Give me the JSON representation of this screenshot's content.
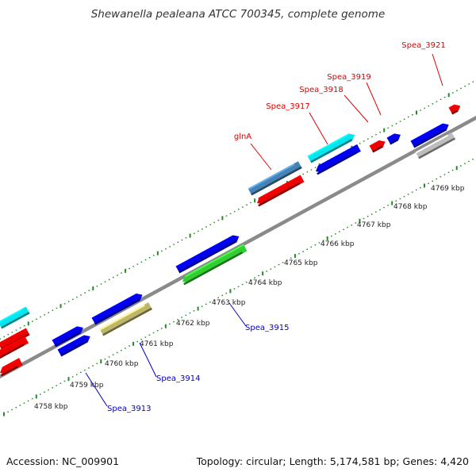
{
  "title": "Shewanella pealeana ATCC 700345, complete genome",
  "footer": {
    "accession": "Accession: NC_009901",
    "summary": "Topology: circular; Length: 5,174,581 bp; Genes: 4,420"
  },
  "colors": {
    "backbone": "#8a8a8a",
    "tick": "#228b22",
    "label_forward": "#dd0000",
    "label_reverse": "#0000cc"
  },
  "kbp_labels": [
    "4758 kbp",
    "4759 kbp",
    "4760 kbp",
    "4761 kbp",
    "4762 kbp",
    "4763 kbp",
    "4764 kbp",
    "4765 kbp",
    "4766 kbp",
    "4767 kbp",
    "4768 kbp",
    "4769 kbp"
  ],
  "gene_labels": [
    {
      "text": "Spea_3921",
      "strand": "forward"
    },
    {
      "text": "Spea_3919",
      "strand": "forward"
    },
    {
      "text": "Spea_3918",
      "strand": "forward"
    },
    {
      "text": "Spea_3917",
      "strand": "forward"
    },
    {
      "text": "glnA",
      "strand": "forward"
    },
    {
      "text": "Spea_3915",
      "strand": "reverse"
    },
    {
      "text": "Spea_3914",
      "strand": "reverse"
    },
    {
      "text": "Spea_3913",
      "strand": "reverse"
    }
  ],
  "features": [
    {
      "color": "#00e5ee",
      "strand": "forward",
      "shape": "bar"
    },
    {
      "color": "#ee0000",
      "strand": "forward",
      "shape": "bar"
    },
    {
      "color": "#0000ee",
      "strand": "forward",
      "shape": "arrow"
    },
    {
      "color": "#0000ee",
      "strand": "forward",
      "shape": "arrow"
    },
    {
      "color": "#0000ee",
      "strand": "forward",
      "shape": "arrow"
    },
    {
      "color": "#0000ee",
      "strand": "forward",
      "shape": "arrow"
    },
    {
      "color": "#4682b4",
      "strand": "forward",
      "shape": "bar"
    },
    {
      "color": "#00e5ee",
      "strand": "forward",
      "shape": "arrow"
    },
    {
      "color": "#0000ee",
      "strand": "forward",
      "shape": "arrow"
    },
    {
      "color": "#ee0000",
      "strand": "forward",
      "shape": "arrow"
    },
    {
      "color": "#ee0000",
      "strand": "forward",
      "shape": "arrow"
    },
    {
      "color": "#0000ee",
      "strand": "forward",
      "shape": "arrow"
    },
    {
      "color": "#ee0000",
      "strand": "reverse",
      "shape": "arrow"
    },
    {
      "color": "#0000ee",
      "strand": "reverse",
      "shape": "arrow"
    },
    {
      "color": "#bdb76b",
      "strand": "reverse",
      "shape": "bar"
    },
    {
      "color": "#32cd32",
      "strand": "reverse",
      "shape": "arrow"
    },
    {
      "color": "#ee0000",
      "strand": "reverse",
      "shape": "arrow"
    },
    {
      "color": "#ee0000",
      "strand": "reverse",
      "shape": "arrow"
    },
    {
      "color": "#bdbdbd",
      "strand": "reverse",
      "shape": "bar"
    }
  ]
}
